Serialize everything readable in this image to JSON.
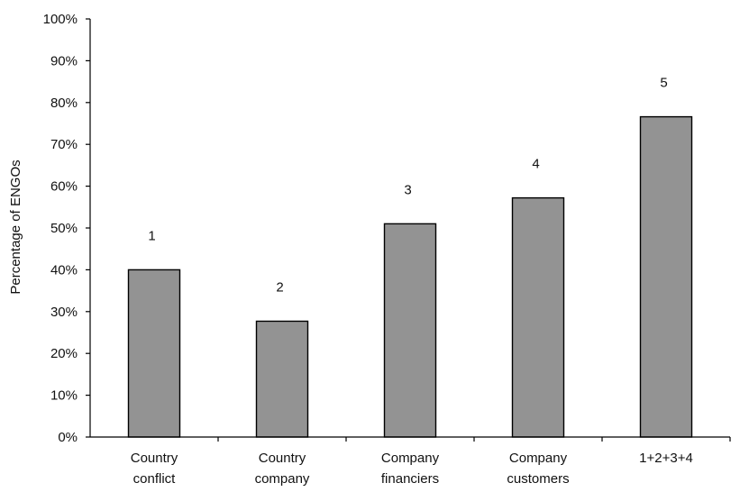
{
  "chart_data": {
    "type": "bar",
    "categories": [
      [
        "Country",
        "conflict"
      ],
      [
        "Country",
        "company"
      ],
      [
        "Company",
        "financiers"
      ],
      [
        "Company",
        "customers"
      ],
      [
        "1+2+3+4"
      ]
    ],
    "values": [
      40,
      27.7,
      51,
      57.2,
      76.6
    ],
    "data_labels": [
      "1",
      "2",
      "3",
      "4",
      "5"
    ],
    "ylabel": "Percentage of ENGOs",
    "ylim": [
      0,
      100
    ],
    "y_ticks": [
      "0%",
      "10%",
      "20%",
      "30%",
      "40%",
      "50%",
      "60%",
      "70%",
      "80%",
      "90%",
      "100%"
    ],
    "grid": false,
    "legend": "none",
    "bar_color": "#939393"
  }
}
